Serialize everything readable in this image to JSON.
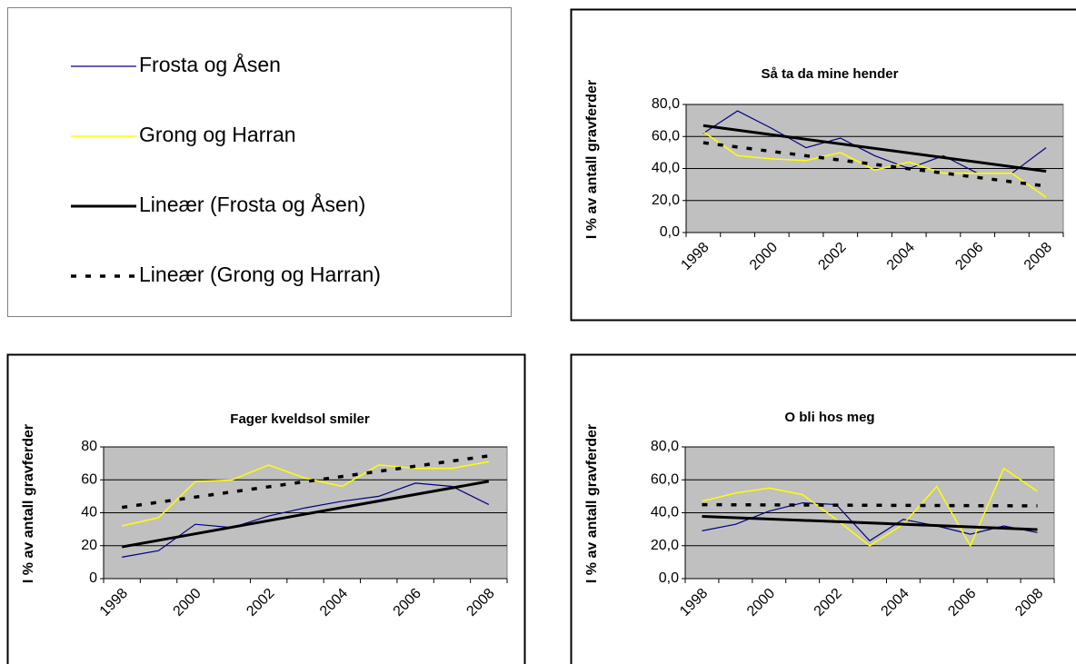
{
  "legend": {
    "entries": [
      {
        "name": "Frosta og Åsen",
        "color": "#000080",
        "style": "solid",
        "width": 1.2
      },
      {
        "name": "Grong og Harran",
        "color": "#ffff00",
        "style": "solid",
        "width": 1.5
      },
      {
        "name": "Lineær (Frosta og Åsen)",
        "color": "#000000",
        "style": "solid",
        "width": 3
      },
      {
        "name": "Lineær (Grong og Harran)",
        "color": "#000000",
        "style": "dashed",
        "width": 3.5
      }
    ]
  },
  "chart_data": [
    {
      "type": "line",
      "title": "Så ta da mine hender",
      "y_label": "I % av antall gravferder",
      "categories": [
        "1998",
        null,
        "2000",
        null,
        "2002",
        null,
        "2004",
        null,
        "2006",
        null,
        "2008"
      ],
      "series": [
        {
          "color": "#000080",
          "values": [
            62,
            76,
            65,
            53,
            59,
            48,
            40,
            48,
            37,
            37,
            53
          ]
        },
        {
          "color": "#ffff00",
          "values": [
            63,
            48,
            46,
            45,
            50,
            39,
            44,
            37,
            37,
            37,
            22
          ]
        }
      ],
      "trendline": "linear",
      "ylim": [
        0,
        80
      ],
      "yticks": [
        {
          "value": 0,
          "label": "0,0"
        },
        {
          "value": 20,
          "label": "20,0"
        },
        {
          "value": 40,
          "label": "40,0"
        },
        {
          "value": 60,
          "label": "60,0"
        },
        {
          "value": 80,
          "label": "80,0"
        }
      ],
      "grid": true,
      "plot_background": "#c0c0c0"
    },
    {
      "type": "line",
      "title": "Fager kveldsol smiler",
      "y_label": "I % av antall gravferder",
      "categories": [
        "1998",
        null,
        "2000",
        null,
        "2002",
        null,
        "2004",
        null,
        "2006",
        null,
        "2008"
      ],
      "series": [
        {
          "color": "#000080",
          "values": [
            13,
            17,
            33,
            31,
            38,
            43,
            47,
            50,
            58,
            56,
            45
          ]
        },
        {
          "color": "#ffff00",
          "values": [
            32,
            37,
            59,
            60,
            69,
            61,
            56,
            69,
            67,
            67,
            71
          ]
        }
      ],
      "trendline": "linear",
      "ylim": [
        0,
        80
      ],
      "yticks": [
        0,
        20,
        40,
        60,
        80
      ],
      "grid": true,
      "plot_background": "#c0c0c0"
    },
    {
      "type": "line",
      "title": "O bli hos meg",
      "y_label": "I % av antall gravferder",
      "categories": [
        "1998",
        null,
        "2000",
        null,
        "2002",
        null,
        "2004",
        null,
        "2006",
        null,
        "2008"
      ],
      "series": [
        {
          "color": "#000080",
          "values": [
            29,
            33,
            41,
            46,
            45,
            23,
            36,
            32,
            27,
            32,
            28
          ]
        },
        {
          "color": "#ffff00",
          "values": [
            47,
            52,
            55,
            51,
            36,
            20,
            33,
            56,
            20,
            67,
            53
          ]
        }
      ],
      "trendline": "linear",
      "ylim": [
        0,
        80
      ],
      "yticks": [
        {
          "value": 0,
          "label": "0,0"
        },
        {
          "value": 20,
          "label": "20,0"
        },
        {
          "value": 40,
          "label": "40,0"
        },
        {
          "value": 60,
          "label": "60,0"
        },
        {
          "value": 80,
          "label": "80,0"
        }
      ],
      "grid": true,
      "plot_background": "#c0c0c0"
    }
  ]
}
